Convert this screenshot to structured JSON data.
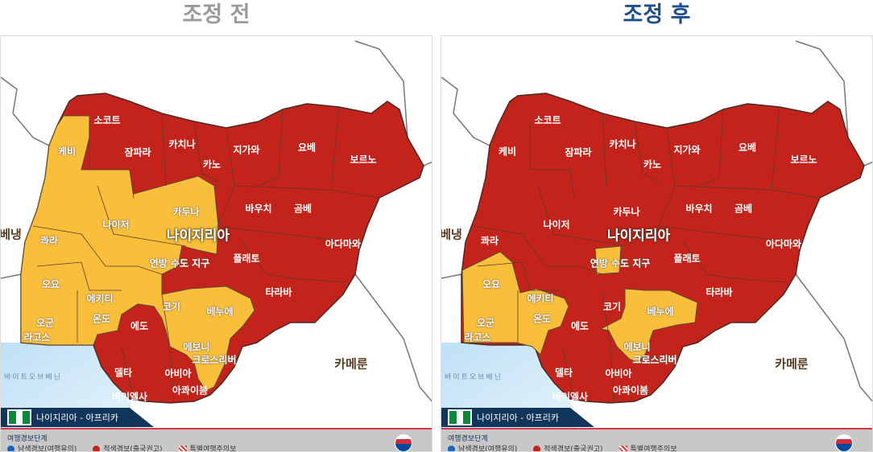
{
  "titles": {
    "before": "조정 전",
    "after": "조정 후"
  },
  "colors": {
    "red_alert": "#c4231b",
    "yellow_alert": "#f9bf3b",
    "blue_alert": "#1565c0",
    "title_after": "#1d4f8f",
    "title_before": "#9a9a9a"
  },
  "map": {
    "country": "나이지리아",
    "neighbors": {
      "benin": "베냉",
      "cameroon": "카메룬"
    },
    "sea": "바이트오브베닌",
    "banner": "나이지리아 - 아프리카",
    "states": [
      {
        "name": "소코트",
        "before": "red",
        "after": "red"
      },
      {
        "name": "케비",
        "before": "yellow",
        "after": "red"
      },
      {
        "name": "잠파라",
        "before": "red",
        "after": "red"
      },
      {
        "name": "카치나",
        "before": "red",
        "after": "red"
      },
      {
        "name": "카노",
        "before": "red",
        "after": "red"
      },
      {
        "name": "지가와",
        "before": "red",
        "after": "red"
      },
      {
        "name": "요베",
        "before": "red",
        "after": "red"
      },
      {
        "name": "보르노",
        "before": "red",
        "after": "red"
      },
      {
        "name": "카두나",
        "before": "yellow",
        "after": "red"
      },
      {
        "name": "바우치",
        "before": "red",
        "after": "red"
      },
      {
        "name": "곰베",
        "before": "red",
        "after": "red"
      },
      {
        "name": "나이저",
        "before": "yellow",
        "after": "red"
      },
      {
        "name": "콰라",
        "before": "yellow",
        "after": "red"
      },
      {
        "name": "아다마와",
        "before": "red",
        "after": "red"
      },
      {
        "name": "연방 수도 지구",
        "before": "yellow",
        "after": "yellow"
      },
      {
        "name": "플래토",
        "before": "red",
        "after": "red"
      },
      {
        "name": "타라바",
        "before": "red",
        "after": "red"
      },
      {
        "name": "오요",
        "before": "yellow",
        "after": "yellow"
      },
      {
        "name": "에키티",
        "before": "yellow",
        "after": "yellow"
      },
      {
        "name": "코기",
        "before": "yellow",
        "after": "red"
      },
      {
        "name": "베누에",
        "before": "yellow",
        "after": "yellow"
      },
      {
        "name": "온도",
        "before": "yellow",
        "after": "yellow"
      },
      {
        "name": "에도",
        "before": "red",
        "after": "red"
      },
      {
        "name": "오군",
        "before": "yellow",
        "after": "yellow"
      },
      {
        "name": "라고스",
        "before": "yellow",
        "after": "yellow"
      },
      {
        "name": "에보니",
        "before": "yellow",
        "after": "yellow"
      },
      {
        "name": "크로스리버",
        "before": "yellow",
        "after": "yellow"
      },
      {
        "name": "델타",
        "before": "red",
        "after": "red"
      },
      {
        "name": "아비아",
        "before": "red",
        "after": "red"
      },
      {
        "name": "아콰이봄",
        "before": "red",
        "after": "red"
      },
      {
        "name": "바이엘사",
        "before": "red",
        "after": "red"
      }
    ]
  },
  "legend": {
    "title": "여행경보단계",
    "items": [
      {
        "label": "남색경보(여행유의)",
        "icon": "blue-dot",
        "color": "#1565c0"
      },
      {
        "label": "적색경보(출국권고)",
        "icon": "red-dot",
        "color": "#c4231b"
      },
      {
        "label": "특별여행주의보",
        "icon": "red-hatch",
        "color": "#e33333"
      }
    ]
  }
}
